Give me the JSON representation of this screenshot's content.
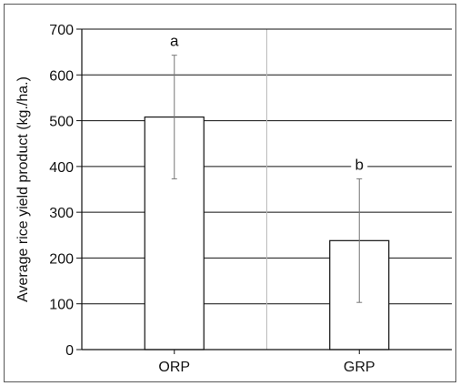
{
  "chart_data": {
    "type": "bar",
    "ylabel": "Average rice yield product (kg./ha.)",
    "xlabel": "",
    "categories": [
      "ORP",
      "GRP"
    ],
    "values": [
      508,
      238
    ],
    "error_bars": [
      {
        "low": 373,
        "high": 643
      },
      {
        "low": 103,
        "high": 373
      }
    ],
    "significance_labels": [
      "a",
      "b"
    ],
    "ylim": [
      0,
      700
    ],
    "yticks": [
      0,
      100,
      200,
      300,
      400,
      500,
      600,
      700
    ],
    "grid": "horizontal gridlines at each tick; vertical separator between categories",
    "colors": {
      "bar_fill": "#ffffff",
      "bar_stroke": "#111111",
      "grid": "#111111",
      "separator": "#bbbbbb"
    }
  }
}
